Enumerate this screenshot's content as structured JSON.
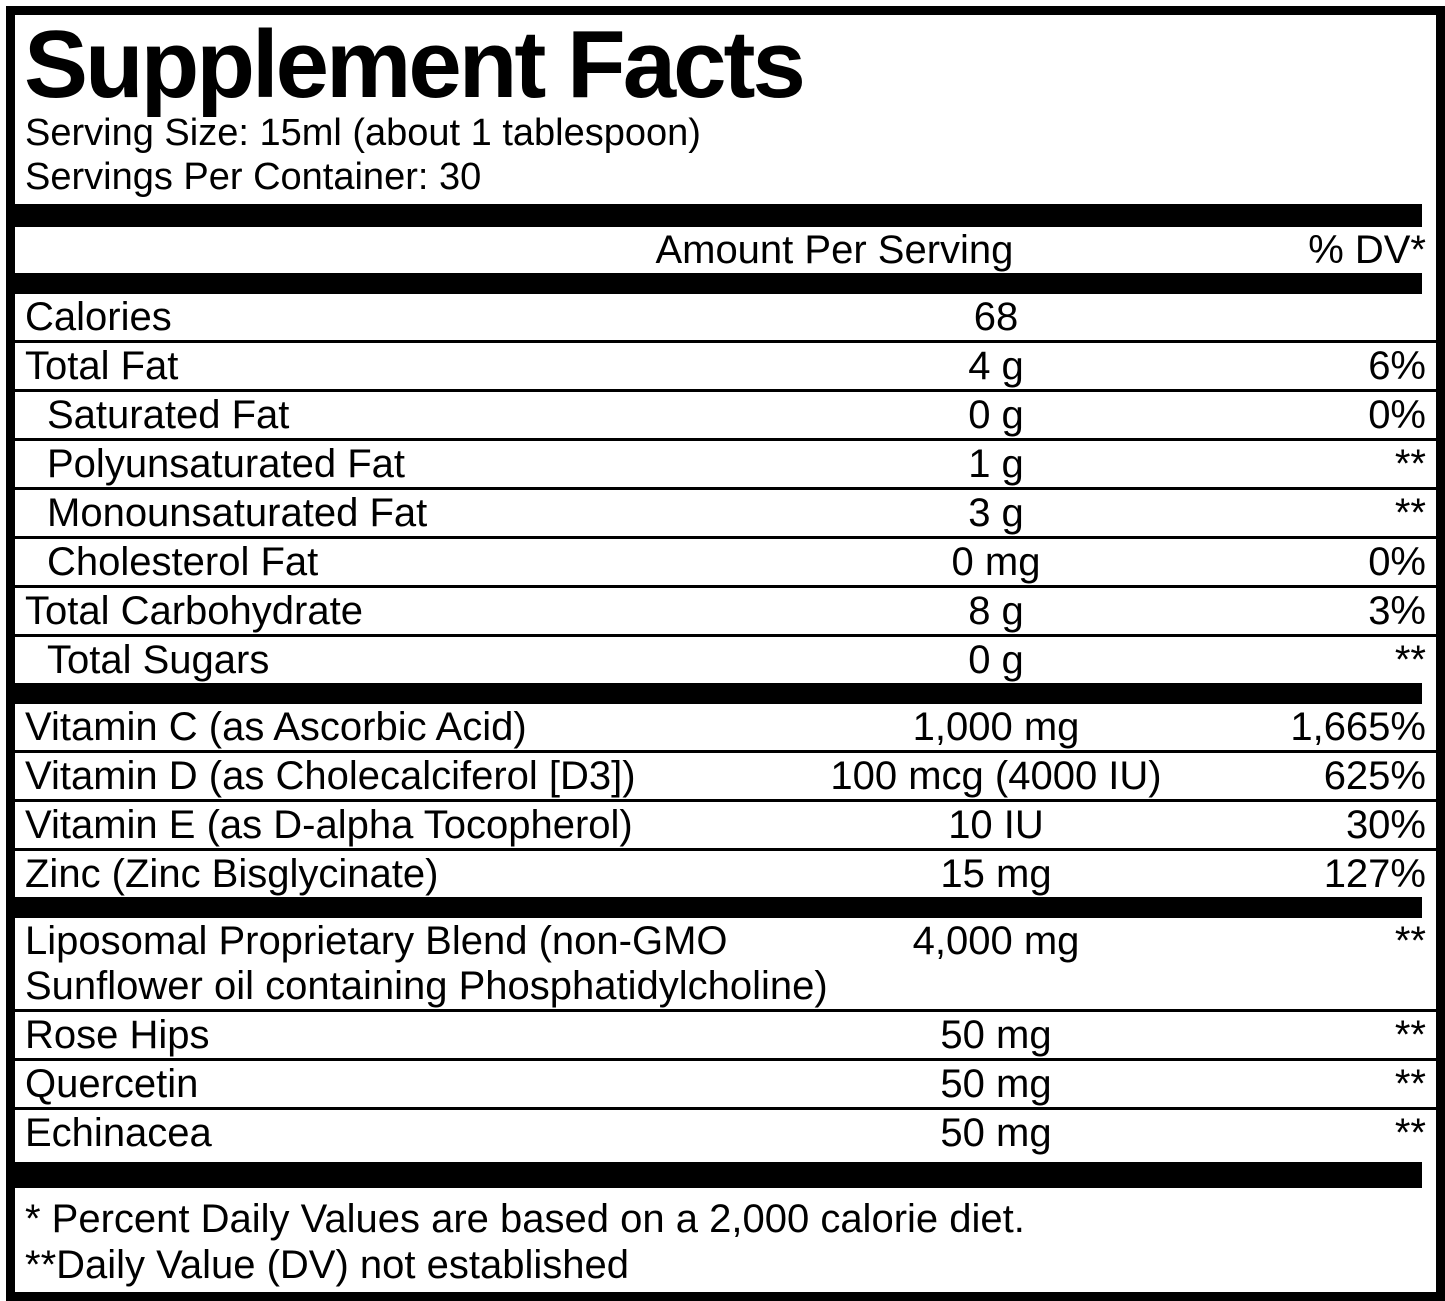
{
  "title": "Supplement Facts",
  "serving": {
    "size_line": "Serving Size: 15ml (about 1 tablespoon)",
    "per_container_line": "Servings Per Container: 30"
  },
  "table": {
    "amount_header": "Amount Per Serving",
    "dv_header": "% DV*",
    "macro_rows": [
      {
        "label": "Calories",
        "amount": "68",
        "dv": "",
        "indent": false
      },
      {
        "label": "Total Fat",
        "amount": "4 g",
        "dv": "6%",
        "indent": false
      },
      {
        "label": "Saturated Fat",
        "amount": "0 g",
        "dv": "0%",
        "indent": true
      },
      {
        "label": "Polyunsaturated Fat",
        "amount": "1 g",
        "dv": "**",
        "indent": true
      },
      {
        "label": "Monounsaturated Fat",
        "amount": "3 g",
        "dv": "**",
        "indent": true
      },
      {
        "label": "Cholesterol Fat",
        "amount": "0 mg",
        "dv": "0%",
        "indent": true
      },
      {
        "label": "Total Carbohydrate",
        "amount": "8 g",
        "dv": "3%",
        "indent": false
      },
      {
        "label": "Total Sugars",
        "amount": "0 g",
        "dv": "**",
        "indent": true
      }
    ],
    "vitamin_rows": [
      {
        "label": "Vitamin C (as Ascorbic Acid)",
        "amount": "1,000 mg",
        "dv": "1,665%",
        "indent": false
      },
      {
        "label": "Vitamin D (as Cholecalciferol [D3])",
        "amount": "100 mcg (4000 IU)",
        "dv": "625%",
        "indent": false
      },
      {
        "label": "Vitamin E (as D-alpha Tocopherol)",
        "amount": "10 IU",
        "dv": "30%",
        "indent": false
      },
      {
        "label": "Zinc (Zinc Bisglycinate)",
        "amount": "15 mg",
        "dv": "127%",
        "indent": false
      }
    ],
    "blend_rows": [
      {
        "label": "Liposomal Proprietary Blend (non-GMO",
        "label_line2": "Sunflower oil containing Phosphatidylcholine)",
        "amount": "4,000 mg",
        "dv": "**",
        "indent": false
      },
      {
        "label": "Rose Hips",
        "amount": "50 mg",
        "dv": "**",
        "indent": false
      },
      {
        "label": "Quercetin",
        "amount": "50 mg",
        "dv": "**",
        "indent": false
      },
      {
        "label": "Echinacea",
        "amount": "50 mg",
        "dv": "**",
        "indent": false
      }
    ]
  },
  "footnotes": [
    "* Percent Daily Values are based on a 2,000 calorie diet.",
    "**Daily Value (DV) not established"
  ],
  "colors": {
    "ink": "#000000",
    "background": "#ffffff"
  }
}
